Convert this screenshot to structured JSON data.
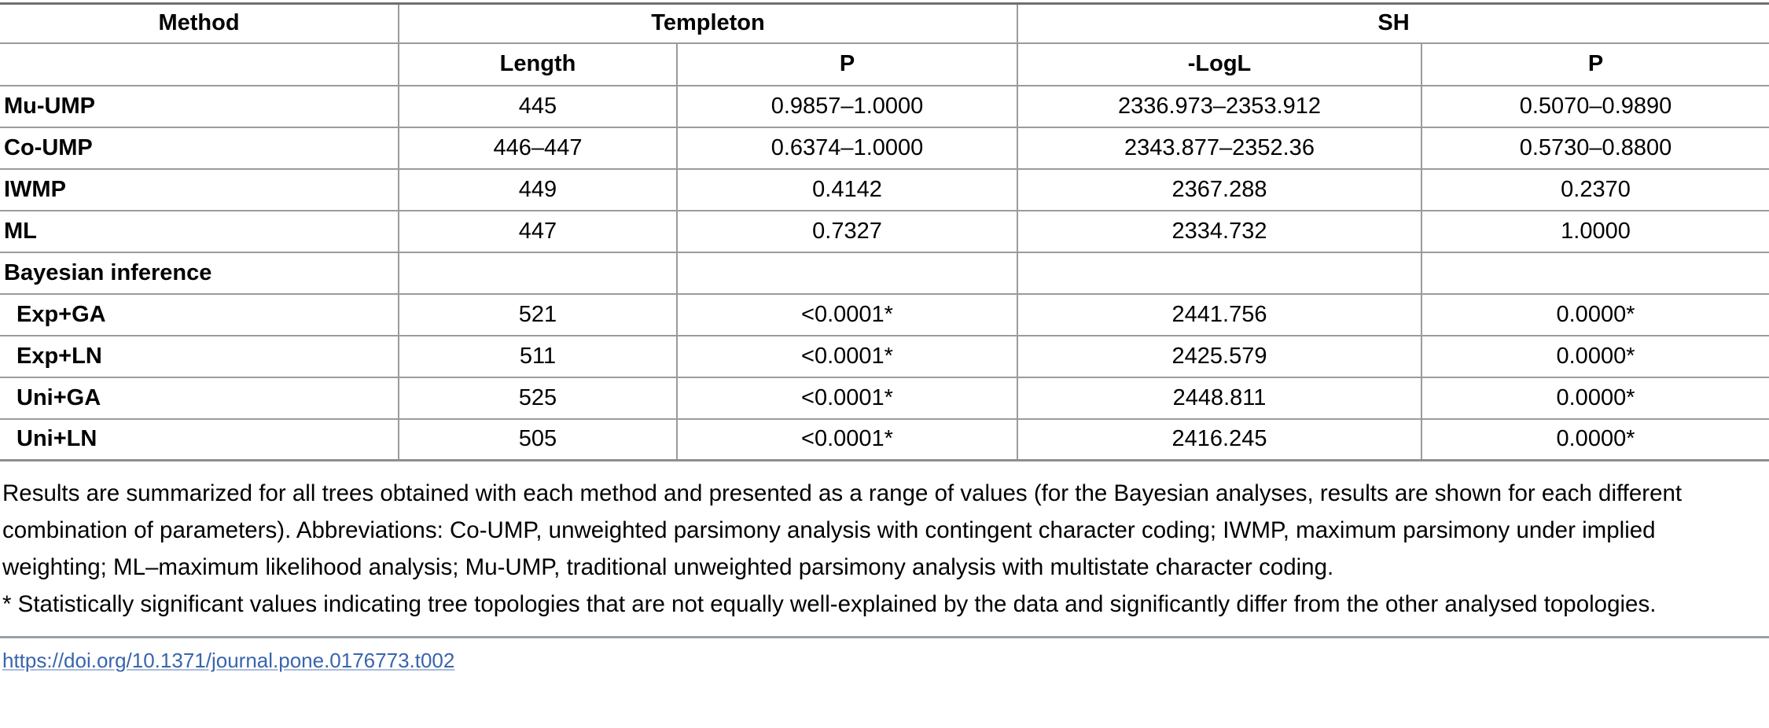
{
  "table": {
    "header": {
      "method": "Method",
      "templeton": "Templeton",
      "sh": "SH",
      "sub": {
        "blank": "",
        "length": "Length",
        "templeton_p": "P",
        "logl": "-LogL",
        "sh_p": "P"
      }
    },
    "rows": [
      {
        "label": "Mu-UMP",
        "length": "445",
        "templeton_p": "0.9857–1.0000",
        "logl": "2336.973–2353.912",
        "sh_p": "0.5070–0.9890"
      },
      {
        "label": "Co-UMP",
        "length": "446–447",
        "templeton_p": "0.6374–1.0000",
        "logl": "2343.877–2352.36",
        "sh_p": "0.5730–0.8800"
      },
      {
        "label": "IWMP",
        "length": "449",
        "templeton_p": "0.4142",
        "logl": "2367.288",
        "sh_p": "0.2370"
      },
      {
        "label": "ML",
        "length": "447",
        "templeton_p": "0.7327",
        "logl": "2334.732",
        "sh_p": "1.0000"
      },
      {
        "label": "Bayesian inference",
        "length": "",
        "templeton_p": "",
        "logl": "",
        "sh_p": ""
      },
      {
        "label": "Exp+GA",
        "length": "521",
        "templeton_p": "<0.0001*",
        "logl": "2441.756",
        "sh_p": "0.0000*"
      },
      {
        "label": "Exp+LN",
        "length": "511",
        "templeton_p": "<0.0001*",
        "logl": "2425.579",
        "sh_p": "0.0000*"
      },
      {
        "label": "Uni+GA",
        "length": "525",
        "templeton_p": "<0.0001*",
        "logl": "2448.811",
        "sh_p": "0.0000*"
      },
      {
        "label": "Uni+LN",
        "length": "505",
        "templeton_p": "<0.0001*",
        "logl": "2416.245",
        "sh_p": "0.0000*"
      }
    ]
  },
  "notes": {
    "summary": "Results are summarized for all trees obtained with each method and presented as a range of values (for the Bayesian analyses, results are shown for each different combination of parameters). Abbreviations: Co-UMP, unweighted parsimony analysis with contingent character coding; IWMP, maximum parsimony under implied weighting; ML–maximum likelihood analysis; Mu-UMP, traditional unweighted parsimony analysis with multistate character coding.",
    "significance": "* Statistically significant values indicating tree topologies that are not equally well-explained by the data and significantly differ from the other analysed topologies."
  },
  "link": {
    "doi": "https://doi.org/10.1371/journal.pone.0176773.t002"
  }
}
